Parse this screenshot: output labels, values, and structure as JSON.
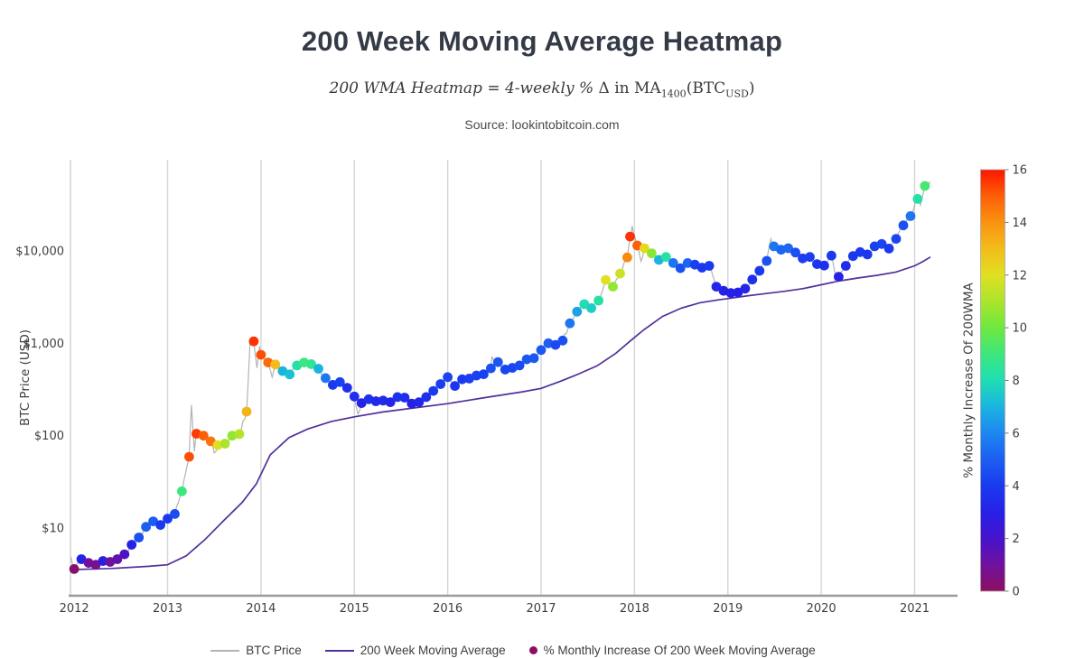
{
  "header": {
    "title": "200 Week Moving Average Heatmap",
    "subtitle": {
      "italic": "200 WMA Heatmap = 4-weekly %",
      "roman": " Δ in MA",
      "sub1": "1400",
      "mid": "(BTC",
      "sub2": "USD",
      "close": ")"
    },
    "source": "Source: lookintobitcoin.com"
  },
  "legend": {
    "items": [
      {
        "label": "BTC Price",
        "swatch": "gray-line"
      },
      {
        "label": "200 Week Moving Average",
        "swatch": "purple-line"
      },
      {
        "label": "% Monthly Increase Of 200 Week Moving Average",
        "swatch": "magenta-dot"
      }
    ]
  },
  "chart_data": {
    "type": "scatter",
    "title": "200 Week Moving Average Heatmap",
    "xlabel": "",
    "ylabel": "BTC Price (USD)",
    "xlim": [
      2011.96,
      2021.44
    ],
    "ylim": [
      1.85,
      97000
    ],
    "y_log": true,
    "grid": "vertical-years",
    "x_ticks": [
      2012,
      2013,
      2014,
      2015,
      2016,
      2017,
      2018,
      2019,
      2020,
      2021
    ],
    "y_ticks": [
      [
        10,
        "$10"
      ],
      [
        100,
        "$100"
      ],
      [
        1000,
        "$1,000"
      ],
      [
        10000,
        "$10,000"
      ]
    ],
    "colorbar": {
      "label": "% Monthly Increase Of 200WMA",
      "min": 0,
      "max": 16,
      "ticks": [
        0,
        2,
        4,
        6,
        8,
        10,
        12,
        14,
        16
      ],
      "stops": [
        "#8d0e61",
        "#70119e",
        "#4613cd",
        "#2621e6",
        "#1a3af0",
        "#1c5ef2",
        "#1e86f0",
        "#1ab4e0",
        "#20ddb4",
        "#3ce77d",
        "#6fe83f",
        "#abe42c",
        "#e0e022",
        "#f2bc1b",
        "#f99311",
        "#fd5f08",
        "#fe1500"
      ]
    },
    "series": [
      {
        "name": "BTC Price",
        "type": "line",
        "color": "#b3b3b3",
        "extra_wick_points": [
          [
            2011.965,
            4.9
          ],
          [
            2013.255,
            215
          ],
          [
            2013.287,
            68
          ],
          [
            2013.32,
            112
          ],
          [
            2013.5,
            65
          ],
          [
            2013.885,
            1125
          ],
          [
            2013.958,
            540
          ],
          [
            2013.985,
            930
          ],
          [
            2014.12,
            430
          ],
          [
            2015.04,
            172
          ],
          [
            2016.475,
            720
          ],
          [
            2016.505,
            600
          ],
          [
            2017.975,
            18600
          ],
          [
            2018.07,
            7700
          ],
          [
            2019.46,
            13500
          ],
          [
            2020.165,
            4650
          ],
          [
            2020.995,
            29500
          ],
          [
            2021.022,
            41000
          ],
          [
            2021.062,
            31500
          ],
          [
            2021.135,
            47000
          ],
          [
            2021.165,
            56500
          ]
        ]
      },
      {
        "name": "200 Week Moving Average",
        "type": "line",
        "color": "#52309b",
        "points": [
          [
            2012.0,
            3.55
          ],
          [
            2012.4,
            3.65
          ],
          [
            2012.8,
            3.85
          ],
          [
            2013.0,
            4.0
          ],
          [
            2013.2,
            5.0
          ],
          [
            2013.4,
            7.5
          ],
          [
            2013.6,
            12
          ],
          [
            2013.8,
            19
          ],
          [
            2013.95,
            30
          ],
          [
            2014.1,
            62
          ],
          [
            2014.3,
            95
          ],
          [
            2014.5,
            118
          ],
          [
            2014.75,
            142
          ],
          [
            2015.0,
            160
          ],
          [
            2015.3,
            180
          ],
          [
            2015.6,
            197
          ],
          [
            2016.0,
            222
          ],
          [
            2016.4,
            258
          ],
          [
            2016.8,
            298
          ],
          [
            2017.0,
            325
          ],
          [
            2017.2,
            385
          ],
          [
            2017.4,
            465
          ],
          [
            2017.6,
            570
          ],
          [
            2017.8,
            780
          ],
          [
            2017.95,
            1050
          ],
          [
            2018.1,
            1400
          ],
          [
            2018.3,
            1950
          ],
          [
            2018.5,
            2400
          ],
          [
            2018.7,
            2750
          ],
          [
            2018.9,
            2950
          ],
          [
            2019.0,
            3050
          ],
          [
            2019.2,
            3250
          ],
          [
            2019.4,
            3450
          ],
          [
            2019.6,
            3650
          ],
          [
            2019.8,
            3900
          ],
          [
            2020.0,
            4300
          ],
          [
            2020.2,
            4750
          ],
          [
            2020.4,
            5100
          ],
          [
            2020.6,
            5450
          ],
          [
            2020.8,
            5900
          ],
          [
            2021.0,
            6900
          ],
          [
            2021.08,
            7600
          ],
          [
            2021.17,
            8600
          ]
        ]
      },
      {
        "name": "% Monthly Increase Of 200 Week Moving Average",
        "type": "scatter-heat",
        "note": "points are [year, btc_price_usd, pct_monthly_increase_of_200wma]",
        "points": [
          [
            2012.0,
            3.6,
            0.2
          ],
          [
            2012.077,
            4.6,
            3.0
          ],
          [
            2012.154,
            4.2,
            1.0
          ],
          [
            2012.231,
            4.0,
            0.8
          ],
          [
            2012.308,
            4.4,
            2.8
          ],
          [
            2012.385,
            4.3,
            1.0
          ],
          [
            2012.462,
            4.6,
            1.3
          ],
          [
            2012.538,
            5.2,
            1.8
          ],
          [
            2012.615,
            6.6,
            3.0
          ],
          [
            2012.692,
            7.9,
            4.6
          ],
          [
            2012.769,
            10.3,
            5.0
          ],
          [
            2012.846,
            11.8,
            5.0
          ],
          [
            2012.923,
            10.8,
            4.0
          ],
          [
            2013.0,
            12.6,
            4.0
          ],
          [
            2013.077,
            14.2,
            4.5
          ],
          [
            2013.154,
            25,
            9.0
          ],
          [
            2013.231,
            59,
            15.2
          ],
          [
            2013.308,
            105,
            15.5
          ],
          [
            2013.385,
            100,
            15.0
          ],
          [
            2013.462,
            87,
            14.6
          ],
          [
            2013.538,
            79,
            12.0
          ],
          [
            2013.615,
            82,
            11.0
          ],
          [
            2013.692,
            100,
            10.6
          ],
          [
            2013.769,
            104,
            11.2
          ],
          [
            2013.846,
            182,
            13.2
          ],
          [
            2013.923,
            1050,
            15.6
          ],
          [
            2014.0,
            750,
            15.2
          ],
          [
            2014.077,
            620,
            14.8
          ],
          [
            2014.154,
            590,
            13.0
          ],
          [
            2014.231,
            500,
            7.0
          ],
          [
            2014.308,
            460,
            7.3
          ],
          [
            2014.385,
            575,
            8.2
          ],
          [
            2014.462,
            620,
            9.0
          ],
          [
            2014.538,
            595,
            8.6
          ],
          [
            2014.615,
            530,
            7.0
          ],
          [
            2014.692,
            420,
            5.6
          ],
          [
            2014.769,
            355,
            4.0
          ],
          [
            2014.846,
            380,
            4.2
          ],
          [
            2014.923,
            330,
            3.6
          ],
          [
            2015.0,
            265,
            3.6
          ],
          [
            2015.077,
            225,
            3.0
          ],
          [
            2015.154,
            248,
            3.6
          ],
          [
            2015.231,
            236,
            3.3
          ],
          [
            2015.308,
            240,
            3.4
          ],
          [
            2015.385,
            230,
            3.1
          ],
          [
            2015.462,
            262,
            3.6
          ],
          [
            2015.538,
            258,
            3.6
          ],
          [
            2015.615,
            222,
            3.0
          ],
          [
            2015.692,
            230,
            3.2
          ],
          [
            2015.769,
            262,
            3.6
          ],
          [
            2015.846,
            305,
            4.0
          ],
          [
            2015.923,
            362,
            4.1
          ],
          [
            2016.0,
            430,
            4.3
          ],
          [
            2016.077,
            345,
            3.8
          ],
          [
            2016.154,
            408,
            4.0
          ],
          [
            2016.231,
            415,
            4.1
          ],
          [
            2016.308,
            448,
            4.2
          ],
          [
            2016.385,
            462,
            4.2
          ],
          [
            2016.462,
            535,
            4.6
          ],
          [
            2016.538,
            625,
            4.8
          ],
          [
            2016.615,
            520,
            4.3
          ],
          [
            2016.692,
            542,
            4.3
          ],
          [
            2016.769,
            575,
            4.5
          ],
          [
            2016.846,
            670,
            4.8
          ],
          [
            2016.923,
            690,
            4.8
          ],
          [
            2017.0,
            845,
            4.8
          ],
          [
            2017.077,
            1000,
            5.0
          ],
          [
            2017.154,
            960,
            4.4
          ],
          [
            2017.231,
            1070,
            4.6
          ],
          [
            2017.308,
            1645,
            5.6
          ],
          [
            2017.385,
            2200,
            6.6
          ],
          [
            2017.462,
            2650,
            8.0
          ],
          [
            2017.538,
            2400,
            7.6
          ],
          [
            2017.615,
            2900,
            8.3
          ],
          [
            2017.692,
            4850,
            12.0
          ],
          [
            2017.769,
            4100,
            10.6
          ],
          [
            2017.846,
            5700,
            11.6
          ],
          [
            2017.923,
            8500,
            14.2
          ],
          [
            2017.953,
            14300,
            15.6
          ],
          [
            2018.03,
            11450,
            15.0
          ],
          [
            2018.107,
            10700,
            12.2
          ],
          [
            2018.184,
            9400,
            10.5
          ],
          [
            2018.261,
            8000,
            7.0
          ],
          [
            2018.338,
            8600,
            8.3
          ],
          [
            2018.415,
            7400,
            5.6
          ],
          [
            2018.492,
            6500,
            4.6
          ],
          [
            2018.569,
            7400,
            5.2
          ],
          [
            2018.646,
            7100,
            4.2
          ],
          [
            2018.723,
            6600,
            3.9
          ],
          [
            2018.8,
            6900,
            4.0
          ],
          [
            2018.877,
            4100,
            3.2
          ],
          [
            2018.954,
            3700,
            3.0
          ],
          [
            2019.031,
            3500,
            3.0
          ],
          [
            2019.108,
            3550,
            3.0
          ],
          [
            2019.185,
            3900,
            3.2
          ],
          [
            2019.262,
            4900,
            3.6
          ],
          [
            2019.339,
            6100,
            4.0
          ],
          [
            2019.416,
            7800,
            4.6
          ],
          [
            2019.493,
            11200,
            5.6
          ],
          [
            2019.57,
            10300,
            5.2
          ],
          [
            2019.647,
            10700,
            5.3
          ],
          [
            2019.724,
            9600,
            4.6
          ],
          [
            2019.801,
            8300,
            4.1
          ],
          [
            2019.878,
            8600,
            4.1
          ],
          [
            2019.955,
            7200,
            3.8
          ],
          [
            2020.032,
            6950,
            3.6
          ],
          [
            2020.109,
            8900,
            4.0
          ],
          [
            2020.186,
            5250,
            3.0
          ],
          [
            2020.263,
            6900,
            3.4
          ],
          [
            2020.34,
            8800,
            3.9
          ],
          [
            2020.417,
            9700,
            4.0
          ],
          [
            2020.494,
            9150,
            3.9
          ],
          [
            2020.571,
            11200,
            4.2
          ],
          [
            2020.648,
            11900,
            4.3
          ],
          [
            2020.725,
            10600,
            4.0
          ],
          [
            2020.802,
            13500,
            4.3
          ],
          [
            2020.879,
            18900,
            4.6
          ],
          [
            2020.956,
            23800,
            5.6
          ],
          [
            2021.033,
            36500,
            8.2
          ],
          [
            2021.11,
            50500,
            9.2
          ]
        ]
      }
    ]
  }
}
